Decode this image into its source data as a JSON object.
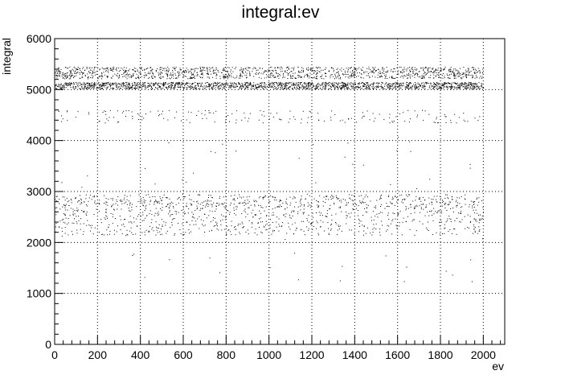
{
  "chart_data": {
    "type": "scatter",
    "title": "integral:ev",
    "xlabel": "ev",
    "ylabel": "integral",
    "xlim": [
      0,
      2100
    ],
    "ylim": [
      0,
      6000
    ],
    "grid": true,
    "x_ticks": [
      0,
      200,
      400,
      600,
      800,
      1000,
      1200,
      1400,
      1600,
      1800,
      2000
    ],
    "y_ticks": [
      0,
      1000,
      2000,
      3000,
      4000,
      5000,
      6000
    ],
    "series": [
      {
        "color": "#000000",
        "x_range": [
          0,
          2000
        ],
        "bands": [
          {
            "y_min": 5020,
            "y_max": 5150,
            "count": 1700
          },
          {
            "y_min": 5220,
            "y_max": 5450,
            "count": 1300
          },
          {
            "y_min": 4350,
            "y_max": 4600,
            "count": 180
          },
          {
            "y_min": 2700,
            "y_max": 2950,
            "count": 520
          },
          {
            "y_min": 2150,
            "y_max": 2700,
            "count": 720
          },
          {
            "y_min": 1200,
            "y_max": 4100,
            "count": 70
          }
        ]
      }
    ]
  }
}
